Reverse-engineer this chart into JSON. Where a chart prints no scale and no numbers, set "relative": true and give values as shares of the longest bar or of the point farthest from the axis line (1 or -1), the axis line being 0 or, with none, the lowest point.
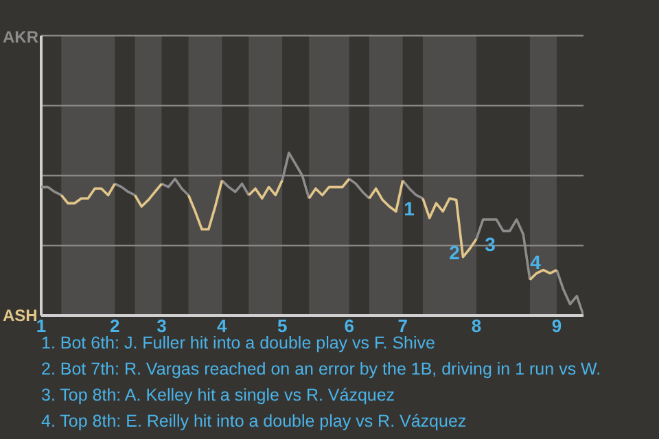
{
  "chart_data": {
    "type": "line",
    "relative": true,
    "categories": [
      "1",
      null,
      null,
      null,
      null,
      null,
      null,
      null,
      null,
      null,
      null,
      "2",
      null,
      null,
      null,
      null,
      null,
      null,
      "3",
      null,
      null,
      null,
      null,
      null,
      null,
      null,
      null,
      "4",
      null,
      null,
      null,
      null,
      null,
      null,
      null,
      null,
      "5",
      null,
      null,
      null,
      null,
      null,
      null,
      null,
      null,
      null,
      "6",
      null,
      null,
      null,
      null,
      null,
      null,
      null,
      "7",
      null,
      null,
      null,
      null,
      null,
      null,
      null,
      null,
      null,
      null,
      "8",
      null,
      null,
      null,
      null,
      null,
      null,
      null,
      null,
      null,
      null,
      null,
      "9",
      null,
      null,
      null,
      null
    ],
    "marker": "none",
    "ref_lines": [
      {
        "axis": "y",
        "value": 0.43,
        "color": "#8a8886"
      },
      {
        "axis": "y",
        "value": 0.86,
        "color": "#8a8886"
      },
      {
        "axis": "y",
        "value": 1.29,
        "color": "#8a8886"
      },
      {
        "axis": "y",
        "value": 1.72,
        "label": "AKR",
        "color": "#8a8886"
      }
    ],
    "series": [
      {
        "color": "#8c8c8c",
        "values": [
          0.79,
          0.79,
          0.76,
          0.74,
          null,
          null,
          null,
          null,
          null,
          null,
          null,
          0.81,
          0.79,
          0.76,
          0.74,
          null,
          null,
          null,
          0.81,
          0.79,
          0.84,
          0.78,
          0.74,
          null,
          null,
          null,
          null,
          0.83,
          0.79,
          0.76,
          0.81,
          0.74,
          null,
          null,
          null,
          null,
          0.83,
          1,
          0.93,
          0.86,
          0.72,
          null,
          null,
          null,
          null,
          null,
          0.84,
          0.81,
          0.76,
          0.72,
          null,
          null,
          null,
          null,
          0.83,
          0.78,
          0.74,
          0.72,
          null,
          null,
          null,
          null,
          null,
          null,
          null,
          0.47,
          0.59,
          0.59,
          0.59,
          0.52,
          0.52,
          0.59,
          0.5,
          0.22,
          null,
          null,
          null,
          0.28,
          0.16,
          0.07,
          0.12,
          0
        ]
      },
      {
        "color": "#e3c78a",
        "values": [
          null,
          null,
          null,
          0.74,
          0.69,
          0.69,
          0.72,
          0.72,
          0.78,
          0.78,
          0.74,
          0.81,
          null,
          null,
          0.74,
          0.67,
          0.71,
          0.76,
          0.81,
          null,
          null,
          null,
          0.74,
          0.64,
          0.53,
          0.53,
          0.67,
          0.83,
          null,
          null,
          null,
          0.74,
          0.78,
          0.72,
          0.79,
          0.74,
          0.83,
          null,
          null,
          null,
          0.72,
          0.78,
          0.74,
          0.79,
          0.79,
          0.79,
          0.84,
          null,
          null,
          0.72,
          0.78,
          0.71,
          0.67,
          0.64,
          0.83,
          null,
          null,
          0.72,
          0.6,
          0.69,
          0.64,
          0.72,
          0.71,
          0.36,
          0.41,
          0.47,
          null,
          null,
          null,
          null,
          null,
          null,
          null,
          0.22,
          0.26,
          0.28,
          0.26,
          0.28,
          null,
          null,
          null,
          null
        ]
      }
    ],
    "annotations": [
      "ASH",
      "1",
      "2",
      "3",
      "4",
      "1. Bot 6th: J. Fuller hit into a double play vs F. Shive",
      "2. Bot 7th: R. Vargas reached on an error by the 1B, driving in 1 run vs W.",
      "3. Top 8th: A. Kelley hit a single vs R. Vázquez",
      "4. Top 8th: E. Reilly hit into a double play vs R. Vázquez"
    ]
  }
}
